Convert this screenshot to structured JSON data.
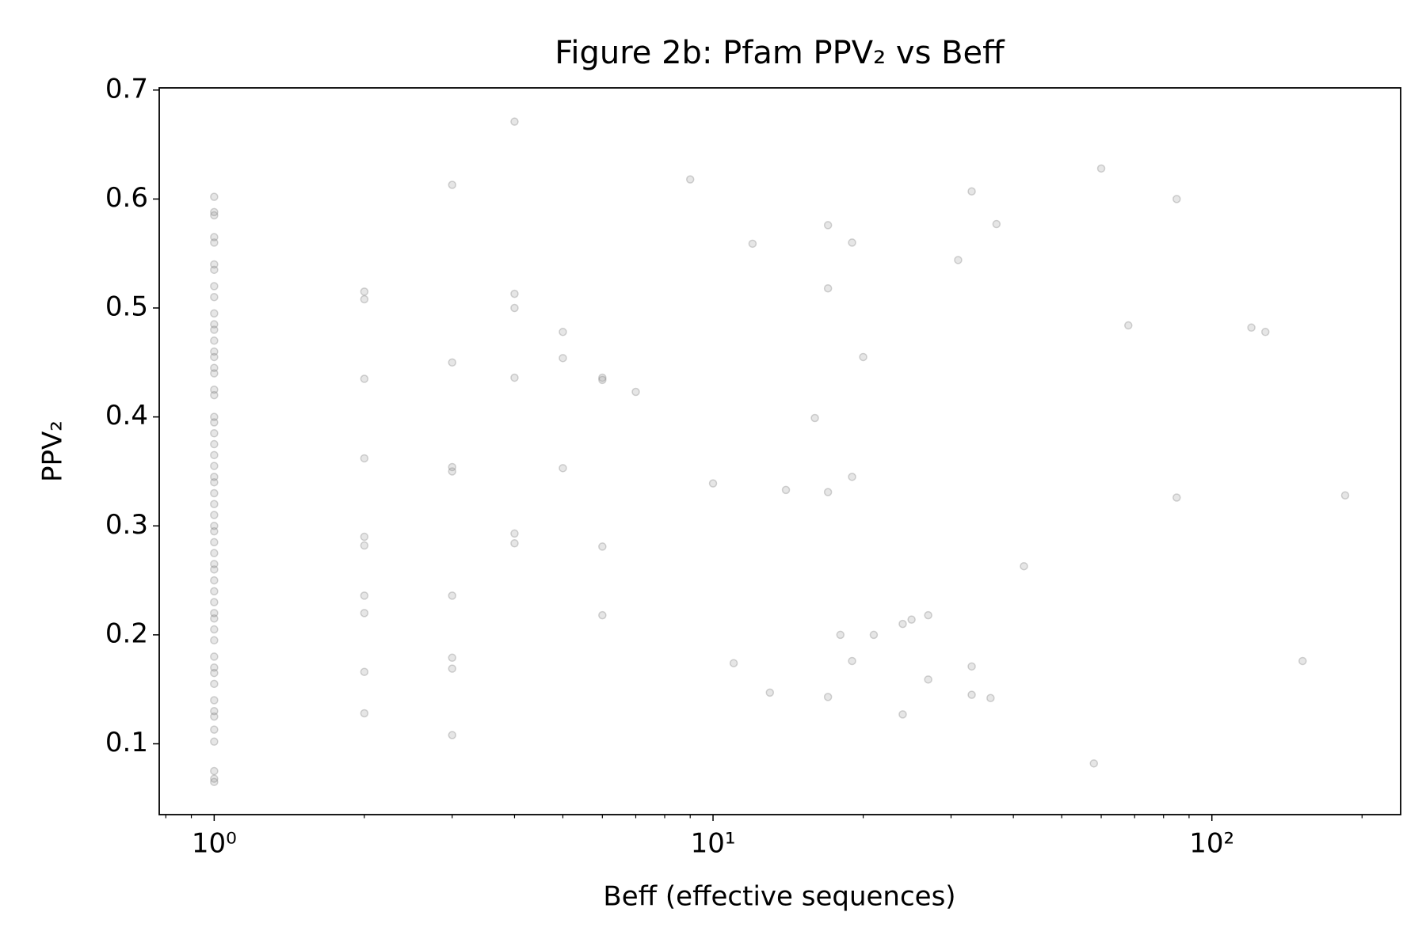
{
  "chart_data": {
    "type": "scatter",
    "title": "Figure 2b: Pfam PPV₂ vs Beff",
    "x_label": "Beff (effective sequences)",
    "y_label": "PPV₂",
    "x_scale": "log",
    "color": "#808080",
    "xlim": [
      0.776,
      239
    ],
    "ylim": [
      0.035,
      0.702
    ],
    "xticks": [
      {
        "value": 1,
        "label": "10⁰"
      },
      {
        "value": 10,
        "label": "10¹"
      },
      {
        "value": 100,
        "label": "10²"
      }
    ],
    "xminorticks": [
      0.8,
      0.9,
      2,
      3,
      4,
      5,
      6,
      7,
      8,
      9,
      20,
      30,
      40,
      50,
      60,
      70,
      80,
      90,
      200
    ],
    "yticks": [
      0.1,
      0.2,
      0.3,
      0.4,
      0.5,
      0.6,
      0.7
    ],
    "x": [
      1,
      1,
      1,
      1,
      1,
      1,
      1,
      1,
      1,
      1,
      1,
      1,
      1,
      1,
      1,
      1,
      1,
      1,
      1,
      1,
      1,
      1,
      1,
      1,
      1,
      1,
      1,
      1,
      1,
      1,
      1,
      1,
      1,
      1,
      1,
      1,
      1,
      1,
      1,
      1,
      1,
      1,
      1,
      1,
      1,
      1,
      1,
      1,
      1,
      1,
      1,
      1,
      1,
      1,
      1,
      2,
      2,
      2,
      2,
      2,
      2,
      2,
      2,
      2,
      2,
      3,
      3,
      3,
      3,
      3,
      3,
      3,
      3,
      4,
      4,
      4,
      4,
      4,
      4,
      5,
      5,
      5,
      6,
      6,
      6,
      6,
      7,
      9,
      10,
      11,
      12,
      13,
      14,
      16,
      17,
      17,
      17,
      17,
      18,
      19,
      19,
      19,
      20,
      21,
      24,
      24,
      25,
      27,
      27,
      31,
      33,
      33,
      33,
      36,
      37,
      42,
      58,
      60,
      68,
      85,
      85,
      120,
      128,
      152,
      185
    ],
    "values": [
      0.602,
      0.588,
      0.585,
      0.565,
      0.56,
      0.54,
      0.535,
      0.52,
      0.51,
      0.495,
      0.485,
      0.48,
      0.47,
      0.46,
      0.455,
      0.445,
      0.44,
      0.425,
      0.42,
      0.4,
      0.395,
      0.385,
      0.375,
      0.365,
      0.355,
      0.345,
      0.34,
      0.33,
      0.32,
      0.31,
      0.3,
      0.295,
      0.285,
      0.275,
      0.265,
      0.26,
      0.25,
      0.24,
      0.23,
      0.22,
      0.215,
      0.205,
      0.195,
      0.18,
      0.17,
      0.165,
      0.155,
      0.14,
      0.13,
      0.125,
      0.113,
      0.102,
      0.075,
      0.068,
      0.065,
      0.515,
      0.508,
      0.435,
      0.362,
      0.29,
      0.282,
      0.236,
      0.22,
      0.166,
      0.128,
      0.613,
      0.45,
      0.354,
      0.35,
      0.236,
      0.179,
      0.169,
      0.108,
      0.671,
      0.513,
      0.5,
      0.436,
      0.293,
      0.284,
      0.478,
      0.454,
      0.353,
      0.436,
      0.434,
      0.281,
      0.218,
      0.423,
      0.618,
      0.339,
      0.174,
      0.559,
      0.147,
      0.333,
      0.399,
      0.576,
      0.518,
      0.331,
      0.143,
      0.2,
      0.56,
      0.345,
      0.176,
      0.455,
      0.2,
      0.21,
      0.127,
      0.214,
      0.218,
      0.159,
      0.544,
      0.607,
      0.171,
      0.145,
      0.142,
      0.577,
      0.263,
      0.082,
      0.628,
      0.484,
      0.6,
      0.326,
      0.482,
      0.478,
      0.176,
      0.328
    ]
  }
}
